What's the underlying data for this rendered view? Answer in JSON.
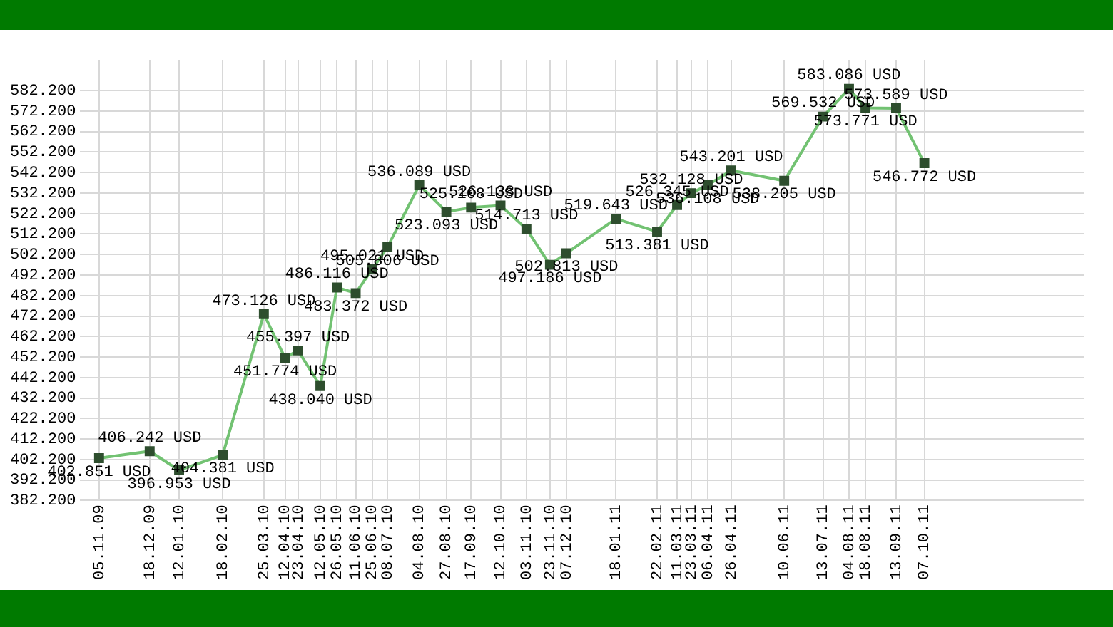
{
  "chart_data": {
    "type": "line",
    "x": [
      "2009-11-05",
      "2009-12-18",
      "2010-01-12",
      "2010-02-18",
      "2010-03-25",
      "2010-04-12",
      "2010-04-23",
      "2010-05-12",
      "2010-05-26",
      "2010-06-11",
      "2010-06-25",
      "2010-07-08",
      "2010-08-04",
      "2010-08-27",
      "2010-09-17",
      "2010-10-12",
      "2010-11-03",
      "2010-11-23",
      "2010-12-07",
      "2011-01-18",
      "2011-02-22",
      "2011-03-11",
      "2011-03-23",
      "2011-04-06",
      "2011-04-26",
      "2011-06-10",
      "2011-07-13",
      "2011-08-04",
      "2011-08-18",
      "2011-09-13",
      "2011-10-07"
    ],
    "series": [
      {
        "color": "#72c272",
        "values": [
          402.851,
          406.242,
          396.953,
          404.381,
          473.126,
          451.774,
          455.397,
          438.04,
          486.116,
          483.372,
          495.021,
          505.806,
          536.089,
          523.093,
          525.108,
          526.138,
          514.713,
          497.186,
          502.813,
          519.643,
          513.381,
          526.345,
          532.128,
          536.108,
          543.201,
          538.205,
          569.532,
          583.086,
          573.771,
          573.589,
          546.772
        ],
        "value_labels": [
          "402.851 USD",
          "406.242 USD",
          "396.953 USD",
          "404.381 USD",
          "473.126 USD",
          "451.774 USD",
          "455.397 USD",
          "438.040 USD",
          "486.116 USD",
          "483.372 USD",
          "495.021 USD",
          "505.806 USD",
          "536.089 USD",
          "523.093 USD",
          "525.108 USD",
          "526.138 USD",
          "514.713 USD",
          "497.186 USD",
          "502.813 USD",
          "519.643 USD",
          "513.381 USD",
          "526.345 USD",
          "532.128 USD",
          "536.108 USD",
          "543.201 USD",
          "538.205 USD",
          "569.532 USD",
          "583.086 USD",
          "573.771 USD",
          "573.589 USD",
          "546.772 USD"
        ]
      }
    ],
    "marker": "square",
    "grid": true,
    "legend": false,
    "xlim": [
      "2009-10-20",
      "2012-02-20"
    ],
    "xticks": [
      {
        "value": "2009-11-05",
        "label": "05.11.09"
      },
      {
        "value": "2009-12-18",
        "label": "18.12.09"
      },
      {
        "value": "2010-01-12",
        "label": "12.01.10"
      },
      {
        "value": "2010-02-18",
        "label": "18.02.10"
      },
      {
        "value": "2010-03-25",
        "label": "25.03.10"
      },
      {
        "value": "2010-04-12",
        "label": "12.04.10"
      },
      {
        "value": "2010-04-23",
        "label": "23.04.10"
      },
      {
        "value": "2010-05-12",
        "label": "12.05.10"
      },
      {
        "value": "2010-05-26",
        "label": "26.05.10"
      },
      {
        "value": "2010-06-11",
        "label": "11.06.10"
      },
      {
        "value": "2010-06-25",
        "label": "25.06.10"
      },
      {
        "value": "2010-07-08",
        "label": "08.07.10"
      },
      {
        "value": "2010-08-04",
        "label": "04.08.10"
      },
      {
        "value": "2010-08-27",
        "label": "27.08.10"
      },
      {
        "value": "2010-09-17",
        "label": "17.09.10"
      },
      {
        "value": "2010-10-12",
        "label": "12.10.10"
      },
      {
        "value": "2010-11-03",
        "label": "03.11.10"
      },
      {
        "value": "2010-11-23",
        "label": "23.11.10"
      },
      {
        "value": "2010-12-07",
        "label": "07.12.10"
      },
      {
        "value": "2011-01-18",
        "label": "18.01.11"
      },
      {
        "value": "2011-02-22",
        "label": "22.02.11"
      },
      {
        "value": "2011-03-11",
        "label": "11.03.11"
      },
      {
        "value": "2011-03-23",
        "label": "23.03.11"
      },
      {
        "value": "2011-04-06",
        "label": "06.04.11"
      },
      {
        "value": "2011-04-26",
        "label": "26.04.11"
      },
      {
        "value": "2011-06-10",
        "label": "10.06.11"
      },
      {
        "value": "2011-07-13",
        "label": "13.07.11"
      },
      {
        "value": "2011-08-04",
        "label": "04.08.11"
      },
      {
        "value": "2011-08-18",
        "label": "18.08.11"
      },
      {
        "value": "2011-09-13",
        "label": "13.09.11"
      },
      {
        "value": "2011-10-07",
        "label": "07.10.11"
      }
    ],
    "ylim": [
      382.2,
      597.2
    ],
    "yticks": [
      {
        "value": 382.2,
        "label": "382.200"
      },
      {
        "value": 392.2,
        "label": "392.200"
      },
      {
        "value": 402.2,
        "label": "402.200"
      },
      {
        "value": 412.2,
        "label": "412.200"
      },
      {
        "value": 422.2,
        "label": "422.200"
      },
      {
        "value": 432.2,
        "label": "432.200"
      },
      {
        "value": 442.2,
        "label": "442.200"
      },
      {
        "value": 452.2,
        "label": "452.200"
      },
      {
        "value": 462.2,
        "label": "462.200"
      },
      {
        "value": 472.2,
        "label": "472.200"
      },
      {
        "value": 482.2,
        "label": "482.200"
      },
      {
        "value": 492.2,
        "label": "492.200"
      },
      {
        "value": 502.2,
        "label": "502.200"
      },
      {
        "value": 512.2,
        "label": "512.200"
      },
      {
        "value": 522.2,
        "label": "522.200"
      },
      {
        "value": 532.2,
        "label": "532.200"
      },
      {
        "value": 542.2,
        "label": "542.200"
      },
      {
        "value": 552.2,
        "label": "552.200"
      },
      {
        "value": 562.2,
        "label": "562.200"
      },
      {
        "value": 572.2,
        "label": "572.200"
      },
      {
        "value": 582.2,
        "label": "582.200"
      }
    ]
  }
}
